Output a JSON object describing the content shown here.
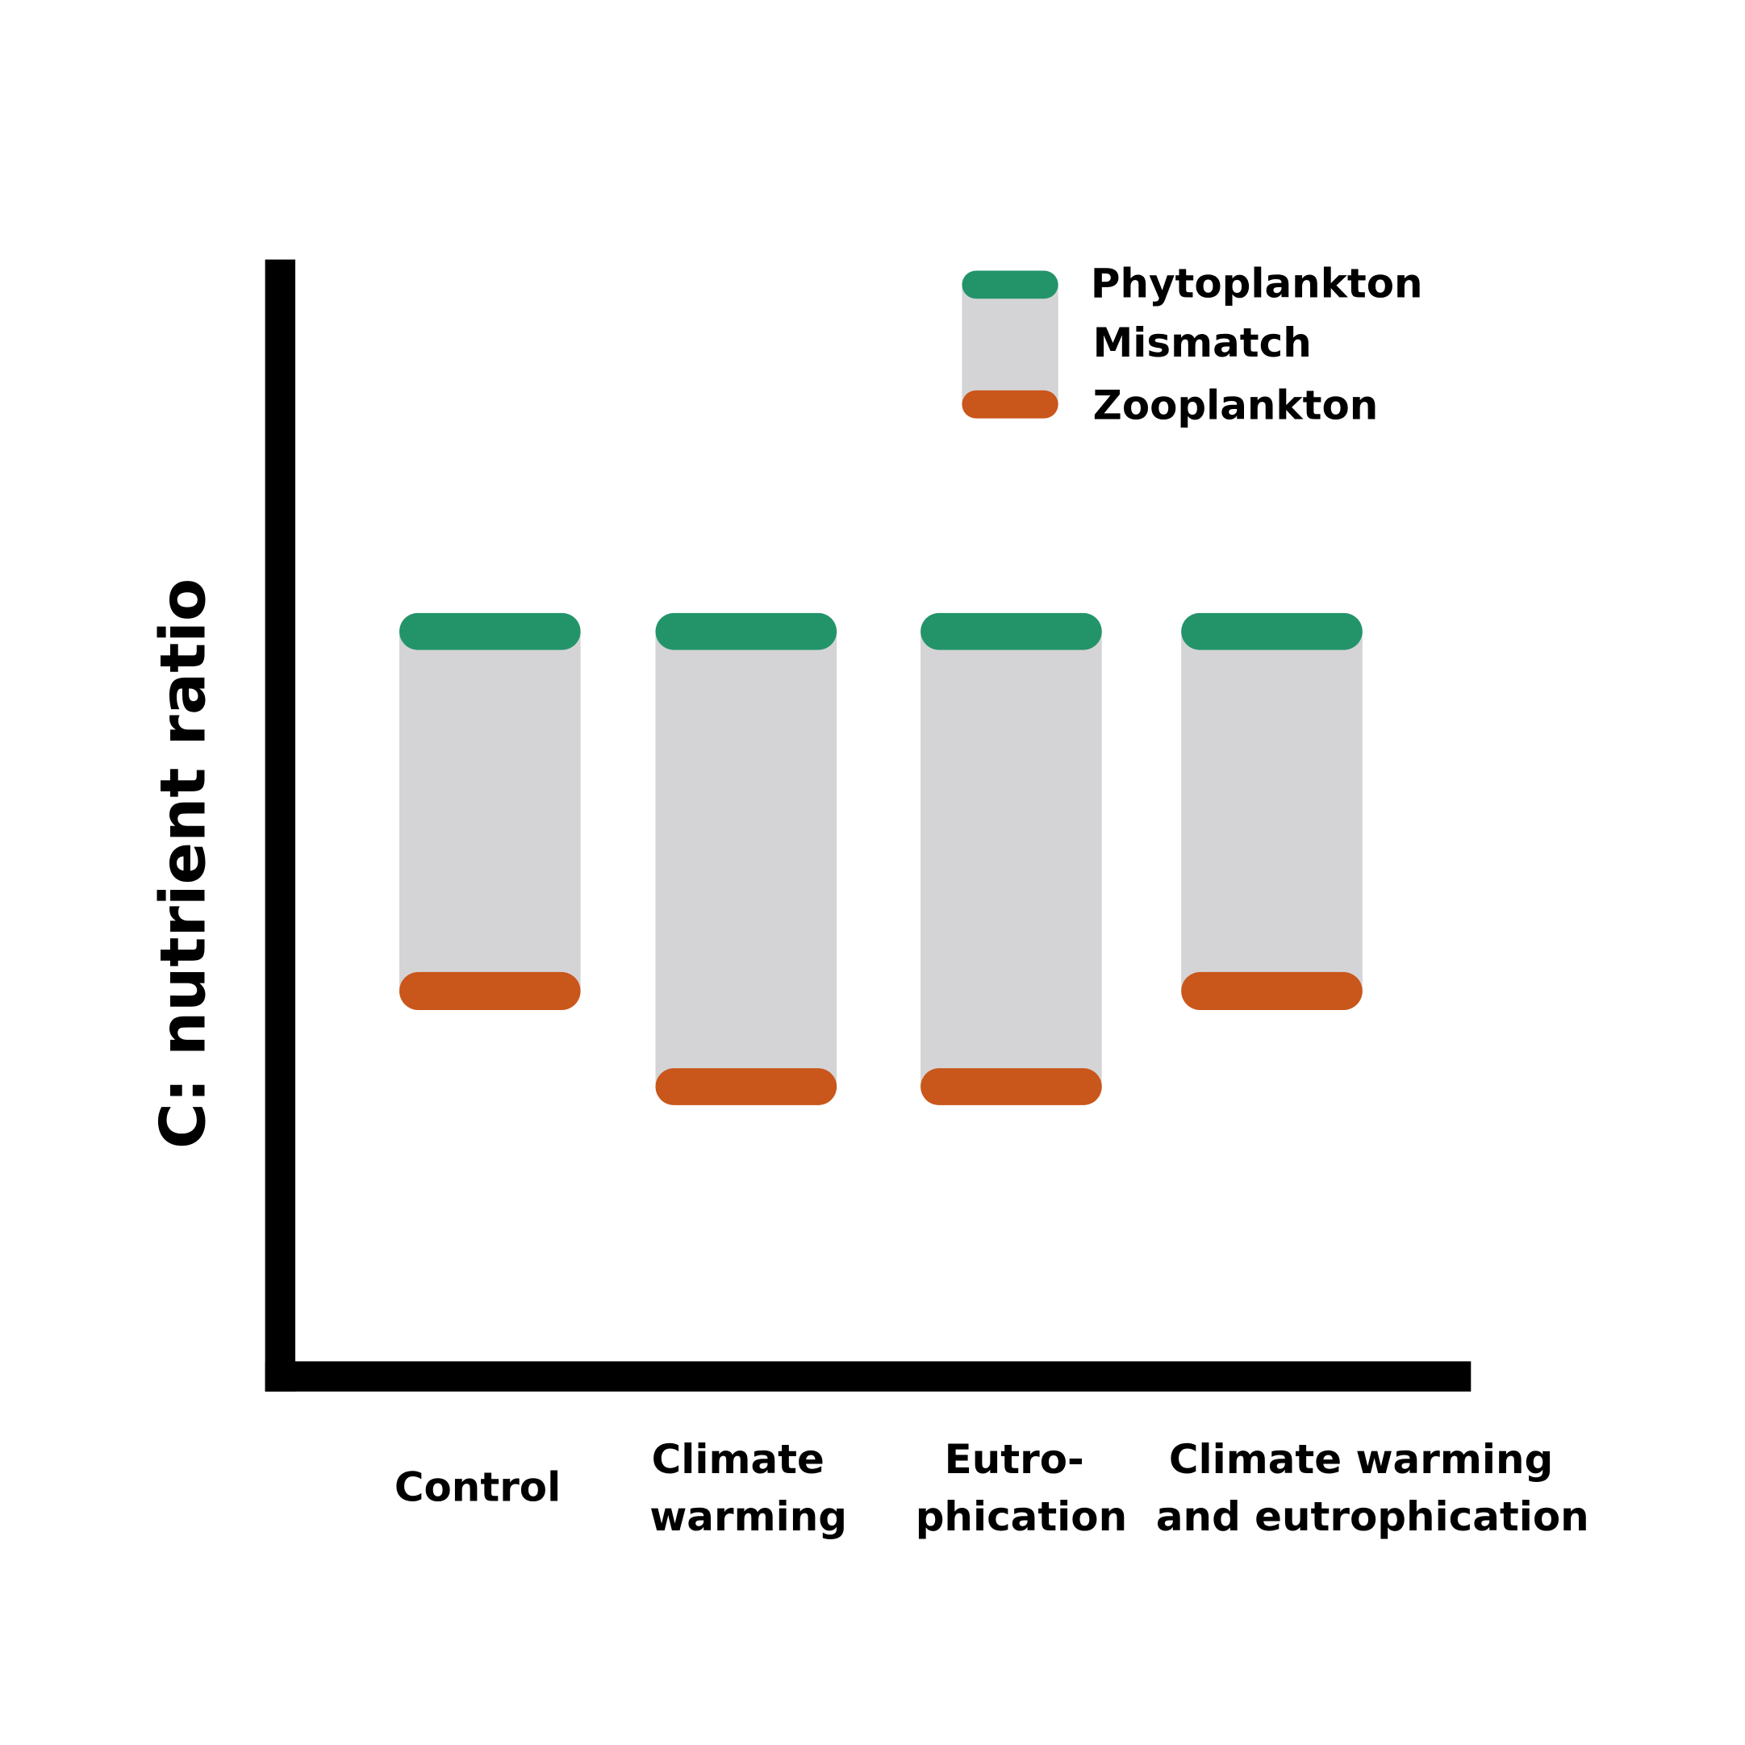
{
  "y_axis_label": "C: nutrient ratio",
  "legend": [
    "Phytoplankton",
    "Mismatch",
    "Zooplankton"
  ],
  "categories": [
    [
      "Control"
    ],
    [
      "Climate",
      "warming"
    ],
    [
      "Eutro-",
      "phication"
    ],
    [
      "Climate warming",
      "and eutrophication"
    ]
  ]
}
